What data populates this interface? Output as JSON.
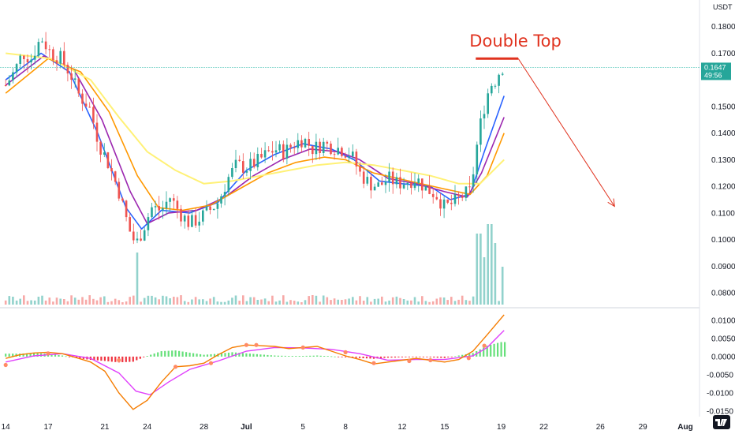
{
  "chart_data": [
    {
      "type": "candlestick",
      "price_unit": "USDT",
      "ylim": [
        0.075,
        0.19
      ],
      "y_ticks": [
        "0.1800",
        "0.1700",
        "0.1500",
        "0.1400",
        "0.1300",
        "0.1200",
        "0.1100",
        "0.1000",
        "0.0900",
        "0.0800"
      ],
      "y_tick_values": [
        0.18,
        0.17,
        0.15,
        0.14,
        0.13,
        0.12,
        0.11,
        0.1,
        0.09,
        0.08
      ],
      "x_ticks": [
        "14",
        "17",
        "21",
        "24",
        "28",
        "Jul",
        "5",
        "8",
        "12",
        "15",
        "19",
        "22",
        "26",
        "29",
        "Aug"
      ],
      "x_tick_days": [
        0,
        3,
        7,
        10,
        14,
        17,
        21,
        24,
        28,
        31,
        35,
        38,
        42,
        45,
        48
      ],
      "x_range_days": [
        -0.4,
        49
      ],
      "last_price": "0.1647",
      "countdown": "49:56",
      "annotation": {
        "text": "Double Top",
        "level": 0.168,
        "from_day": 33.2,
        "to_day": 36.2
      },
      "projection": {
        "from_day": 36.2,
        "from_value": 0.168,
        "to_day": 43.0,
        "to_value": 0.1125
      },
      "close_path": [
        [
          0,
          0.158
        ],
        [
          0.6,
          0.163
        ],
        [
          1.2,
          0.17
        ],
        [
          1.8,
          0.168
        ],
        [
          2.5,
          0.176
        ],
        [
          3.2,
          0.17
        ],
        [
          3.9,
          0.168
        ],
        [
          4.6,
          0.162
        ],
        [
          5.2,
          0.154
        ],
        [
          5.9,
          0.15
        ],
        [
          6.6,
          0.136
        ],
        [
          7.3,
          0.128
        ],
        [
          8.0,
          0.118
        ],
        [
          8.7,
          0.104
        ],
        [
          9.2,
          0.098
        ],
        [
          9.7,
          0.104
        ],
        [
          10.3,
          0.112
        ],
        [
          11.0,
          0.111
        ],
        [
          11.6,
          0.116
        ],
        [
          12.3,
          0.11
        ],
        [
          13.0,
          0.106
        ],
        [
          13.7,
          0.108
        ],
        [
          14.4,
          0.111
        ],
        [
          15.0,
          0.114
        ],
        [
          15.7,
          0.123
        ],
        [
          16.3,
          0.128
        ],
        [
          17.0,
          0.127
        ],
        [
          17.7,
          0.129
        ],
        [
          18.4,
          0.132
        ],
        [
          19.0,
          0.134
        ],
        [
          19.7,
          0.133
        ],
        [
          20.4,
          0.136
        ],
        [
          21.0,
          0.138
        ],
        [
          21.7,
          0.134
        ],
        [
          22.4,
          0.136
        ],
        [
          23.0,
          0.135
        ],
        [
          23.7,
          0.134
        ],
        [
          24.4,
          0.132
        ],
        [
          25.0,
          0.125
        ],
        [
          25.7,
          0.121
        ],
        [
          26.4,
          0.12
        ],
        [
          27.0,
          0.123
        ],
        [
          27.7,
          0.121
        ],
        [
          28.4,
          0.122
        ],
        [
          29.0,
          0.123
        ],
        [
          29.7,
          0.119
        ],
        [
          30.4,
          0.117
        ],
        [
          31.0,
          0.112
        ],
        [
          31.7,
          0.114
        ],
        [
          32.4,
          0.117
        ],
        [
          32.8,
          0.118
        ],
        [
          33.1,
          0.128
        ],
        [
          33.4,
          0.14
        ],
        [
          33.8,
          0.15
        ],
        [
          34.2,
          0.158
        ],
        [
          34.6,
          0.16
        ],
        [
          35.0,
          0.165
        ],
        [
          35.2,
          0.1647
        ]
      ],
      "ma_series": [
        {
          "name": "",
          "color": "#2962ff",
          "values": [
            [
              0,
              0.16
            ],
            [
              2.5,
              0.17
            ],
            [
              4.5,
              0.163
            ],
            [
              6.5,
              0.14
            ],
            [
              8.5,
              0.112
            ],
            [
              9.6,
              0.104
            ],
            [
              11.0,
              0.111
            ],
            [
              13.0,
              0.11
            ],
            [
              15.0,
              0.114
            ],
            [
              17.0,
              0.126
            ],
            [
              19.0,
              0.132
            ],
            [
              21.0,
              0.136
            ],
            [
              23.0,
              0.134
            ],
            [
              24.6,
              0.13
            ],
            [
              26.4,
              0.122
            ],
            [
              28.0,
              0.121
            ],
            [
              30.0,
              0.12
            ],
            [
              31.4,
              0.115
            ],
            [
              32.8,
              0.117
            ],
            [
              33.8,
              0.133
            ],
            [
              35.2,
              0.154
            ]
          ]
        },
        {
          "name": "",
          "color": "#9c27b0",
          "values": [
            [
              0,
              0.158
            ],
            [
              2.7,
              0.169
            ],
            [
              4.8,
              0.164
            ],
            [
              6.8,
              0.145
            ],
            [
              8.8,
              0.118
            ],
            [
              10.0,
              0.106
            ],
            [
              11.5,
              0.11
            ],
            [
              13.5,
              0.111
            ],
            [
              15.5,
              0.116
            ],
            [
              17.5,
              0.124
            ],
            [
              19.5,
              0.13
            ],
            [
              21.5,
              0.134
            ],
            [
              23.5,
              0.133
            ],
            [
              25.0,
              0.13
            ],
            [
              27.0,
              0.123
            ],
            [
              29.0,
              0.121
            ],
            [
              31.0,
              0.118
            ],
            [
              32.6,
              0.116
            ],
            [
              33.6,
              0.125
            ],
            [
              35.2,
              0.146
            ]
          ]
        },
        {
          "name": "",
          "color": "#ff9800",
          "values": [
            [
              0,
              0.155
            ],
            [
              3.0,
              0.168
            ],
            [
              5.3,
              0.163
            ],
            [
              7.3,
              0.148
            ],
            [
              9.3,
              0.124
            ],
            [
              10.8,
              0.112
            ],
            [
              12.5,
              0.111
            ],
            [
              14.5,
              0.113
            ],
            [
              16.5,
              0.119
            ],
            [
              18.5,
              0.125
            ],
            [
              20.5,
              0.129
            ],
            [
              22.5,
              0.131
            ],
            [
              24.0,
              0.13
            ],
            [
              26.0,
              0.125
            ],
            [
              28.5,
              0.122
            ],
            [
              31.0,
              0.119
            ],
            [
              32.8,
              0.117
            ],
            [
              34.0,
              0.124
            ],
            [
              35.2,
              0.14
            ]
          ]
        },
        {
          "name": "",
          "color": "#fff176",
          "values": [
            [
              0,
              0.17
            ],
            [
              3.2,
              0.168
            ],
            [
              6.0,
              0.16
            ],
            [
              8.0,
              0.146
            ],
            [
              10.0,
              0.133
            ],
            [
              12.0,
              0.126
            ],
            [
              14.0,
              0.121
            ],
            [
              16.0,
              0.122
            ],
            [
              18.0,
              0.124
            ],
            [
              20.0,
              0.126
            ],
            [
              22.0,
              0.128
            ],
            [
              24.0,
              0.129
            ],
            [
              26.0,
              0.128
            ],
            [
              28.0,
              0.126
            ],
            [
              30.0,
              0.124
            ],
            [
              32.0,
              0.121
            ],
            [
              33.5,
              0.121
            ],
            [
              35.2,
              0.13
            ]
          ]
        }
      ],
      "volume_spikes": [
        [
          9.2,
          5.5
        ],
        [
          33.4,
          7.5
        ],
        [
          33.8,
          5.0
        ],
        [
          34.2,
          8.5
        ],
        [
          34.6,
          6.5
        ],
        [
          35.0,
          4.0
        ]
      ]
    },
    {
      "type": "macd",
      "ylim": [
        -0.0165,
        0.013
      ],
      "y_ticks": [
        "0.0100",
        "0.0050",
        "0.0000",
        "-0.0050",
        "-0.0100",
        "-0.0150"
      ],
      "y_tick_values": [
        0.01,
        0.005,
        0.0,
        -0.005,
        -0.01,
        -0.015
      ],
      "macd_line": {
        "color": "#f57c00",
        "values": [
          [
            0,
            -0.0005
          ],
          [
            1,
            0.0005
          ],
          [
            2,
            0.001
          ],
          [
            3,
            0.0012
          ],
          [
            4,
            0.0008
          ],
          [
            5,
            -0.0003
          ],
          [
            6,
            -0.0015
          ],
          [
            7,
            -0.004
          ],
          [
            8,
            -0.01
          ],
          [
            9,
            -0.0145
          ],
          [
            10,
            -0.012
          ],
          [
            11,
            -0.007
          ],
          [
            12,
            -0.0028
          ],
          [
            13,
            -0.0025
          ],
          [
            14,
            -0.0018
          ],
          [
            15,
            0.0005
          ],
          [
            16,
            0.0025
          ],
          [
            17,
            0.0032
          ],
          [
            18,
            0.003
          ],
          [
            19,
            0.0028
          ],
          [
            20,
            0.0022
          ],
          [
            21,
            0.0025
          ],
          [
            22,
            0.0028
          ],
          [
            23,
            0.0015
          ],
          [
            24,
            0.0002
          ],
          [
            25,
            -0.0008
          ],
          [
            26,
            -0.002
          ],
          [
            27,
            -0.0015
          ],
          [
            28,
            -0.001
          ],
          [
            29,
            -0.0005
          ],
          [
            30,
            -0.001
          ],
          [
            31,
            -0.0015
          ],
          [
            32,
            -0.0008
          ],
          [
            33,
            0.0015
          ],
          [
            34,
            0.006
          ],
          [
            35.2,
            0.0115
          ]
        ]
      },
      "signal_line": {
        "color": "#e040fb",
        "values": [
          [
            0,
            -0.0015
          ],
          [
            2,
            0.0002
          ],
          [
            4,
            0.0008
          ],
          [
            6,
            -0.0005
          ],
          [
            8,
            -0.0045
          ],
          [
            9.2,
            -0.0095
          ],
          [
            10.2,
            -0.0105
          ],
          [
            11.5,
            -0.007
          ],
          [
            13,
            -0.0035
          ],
          [
            15,
            -0.0012
          ],
          [
            17,
            0.0015
          ],
          [
            19,
            0.0025
          ],
          [
            21,
            0.0024
          ],
          [
            23,
            0.002
          ],
          [
            25,
            0.0008
          ],
          [
            27,
            -0.001
          ],
          [
            29,
            -0.0008
          ],
          [
            31,
            -0.0008
          ],
          [
            33,
            0.0002
          ],
          [
            34,
            0.0025
          ],
          [
            35.2,
            0.0072
          ]
        ]
      },
      "histogram": [
        [
          0,
          0.0008
        ],
        [
          1,
          0.0008
        ],
        [
          2,
          0.001
        ],
        [
          3,
          0.0008
        ],
        [
          4,
          0.0003
        ],
        [
          5,
          -0.0004
        ],
        [
          6,
          -0.0009
        ],
        [
          7,
          -0.0012
        ],
        [
          8,
          -0.0016
        ],
        [
          9,
          -0.0014
        ],
        [
          10,
          0.0002
        ],
        [
          11,
          0.0015
        ],
        [
          12,
          0.0017
        ],
        [
          13,
          0.0011
        ],
        [
          14,
          0.0005
        ],
        [
          15,
          0.0008
        ],
        [
          16,
          0.0012
        ],
        [
          17,
          0.0009
        ],
        [
          18,
          0.0006
        ],
        [
          19,
          0.0003
        ],
        [
          20,
          0.0002
        ],
        [
          21,
          0.0002
        ],
        [
          22,
          0.0003
        ],
        [
          23,
          0.0001
        ],
        [
          24,
          -0.0002
        ],
        [
          25,
          -0.0004
        ],
        [
          26,
          -0.0006
        ],
        [
          27,
          -0.0003
        ],
        [
          28,
          -0.0002
        ],
        [
          29,
          -0.0001
        ],
        [
          30,
          -0.0002
        ],
        [
          31,
          -0.0004
        ],
        [
          32,
          0.0003
        ],
        [
          33,
          0.001
        ],
        [
          34,
          0.003
        ],
        [
          35,
          0.004
        ]
      ],
      "cross_markers": [
        [
          0,
          -0.0023
        ],
        [
          3,
          0.0009
        ],
        [
          8,
          -0.001
        ],
        [
          12,
          -0.0028
        ],
        [
          14.5,
          -0.0018
        ],
        [
          17,
          0.0032
        ],
        [
          17.7,
          0.0032
        ],
        [
          21,
          0.0025
        ],
        [
          24,
          0.0012
        ],
        [
          26,
          -0.0018
        ],
        [
          28.5,
          -0.0012
        ],
        [
          30,
          -0.001
        ],
        [
          32.7,
          -0.0004
        ],
        [
          33.8,
          0.003
        ]
      ]
    }
  ]
}
